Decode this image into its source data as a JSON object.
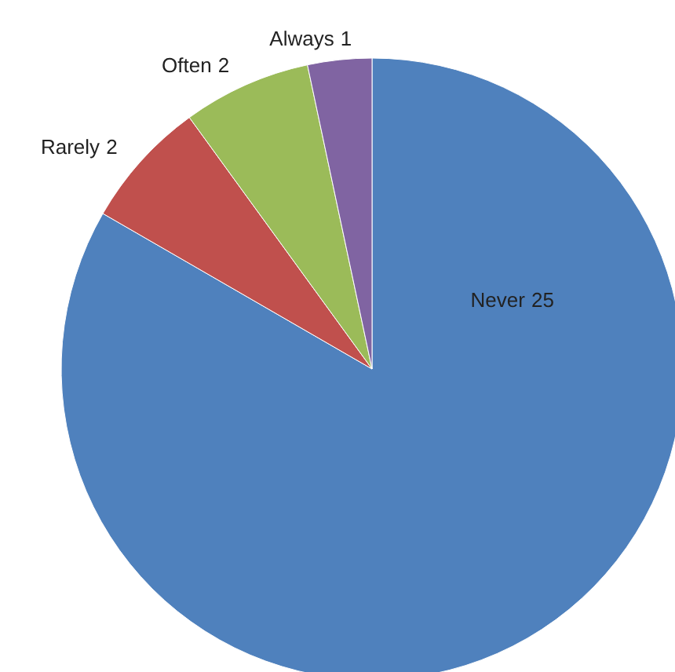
{
  "chart_data": {
    "type": "pie",
    "categories": [
      "Never",
      "Rarely",
      "Often",
      "Always"
    ],
    "values": [
      25,
      2,
      2,
      1
    ],
    "colors": [
      "#4f81bd",
      "#c0504d",
      "#9bbb59",
      "#8064a2"
    ],
    "data_labels": true
  }
}
